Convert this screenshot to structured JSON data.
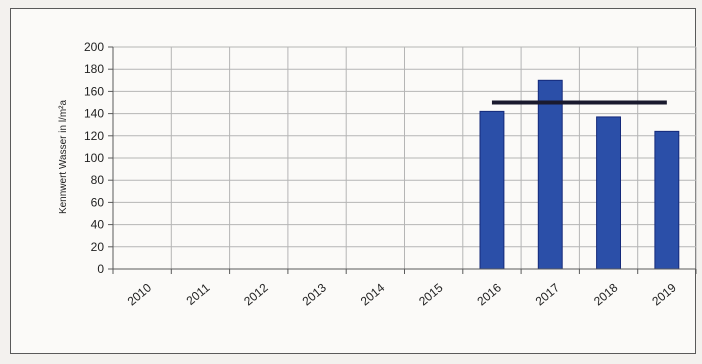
{
  "chart_data": {
    "type": "bar",
    "categories": [
      "2010",
      "2011",
      "2012",
      "2013",
      "2014",
      "2015",
      "2016",
      "2017",
      "2018",
      "2019"
    ],
    "values": [
      null,
      null,
      null,
      null,
      null,
      null,
      142,
      170,
      137,
      124
    ],
    "reference_line": {
      "value": 150,
      "from_category": "2016",
      "to_category": "2019"
    },
    "ylabel": "Kennwert Wasser in l/m²a",
    "xlabel": "",
    "ylim": [
      0,
      200
    ],
    "yticks": [
      0,
      20,
      40,
      60,
      80,
      100,
      120,
      140,
      160,
      180,
      200
    ],
    "grid": true,
    "legend": "none",
    "colors": {
      "bar": "#2b4fa8",
      "bar_edge": "#14297a",
      "reference_line": "#1a1a2e",
      "grid": "#b5b5b5",
      "axis": "#5a5a5a"
    }
  }
}
